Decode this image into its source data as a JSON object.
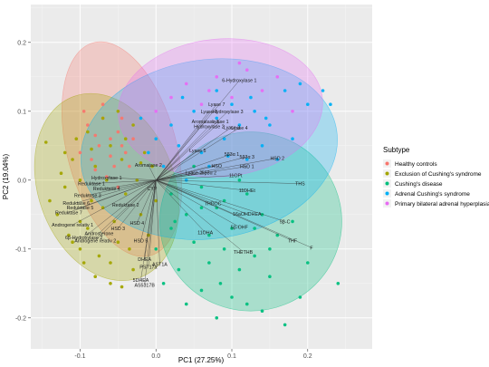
{
  "chart_data": {
    "type": "scatter",
    "subtype": "pca-biplot",
    "title": "",
    "xlabel": "PC1 (27.25%)",
    "ylabel": "PC2 (19.04%)",
    "xlim": [
      -0.165,
      0.285
    ],
    "ylim": [
      -0.245,
      0.255
    ],
    "x_ticks": [
      -0.1,
      0.0,
      0.1,
      0.2
    ],
    "x_tick_labels": [
      "-0.1",
      "0.0",
      "0.1",
      "0.2"
    ],
    "y_ticks": [
      -0.2,
      -0.1,
      0.0,
      0.1,
      0.2
    ],
    "y_tick_labels": [
      "-0.2",
      "-0.1",
      "0.0",
      "0.1",
      "0.2"
    ],
    "grid": true,
    "legend": {
      "title": "Subtype",
      "position": "right",
      "entries": [
        "Healthy controls",
        "Exclusion of Cushing's syndrome",
        "Cushing's disease",
        "Adrenal Cushing's syndrome",
        "Primary bilateral adrenal hyperplasia"
      ]
    },
    "series": [
      {
        "name": "Healthy controls",
        "color": "#f8766d",
        "ellipse": {
          "cx": -0.045,
          "cy": 0.045,
          "rx": 0.072,
          "ry": 0.16,
          "angle": -15
        },
        "points": [
          [
            -0.09,
            0.08
          ],
          [
            -0.08,
            0.065
          ],
          [
            -0.07,
            0.09
          ],
          [
            -0.075,
            0.05
          ],
          [
            -0.06,
            0.06
          ],
          [
            -0.085,
            0.03
          ],
          [
            -0.06,
            0.035
          ],
          [
            -0.05,
            0.07
          ],
          [
            -0.045,
            0.05
          ],
          [
            -0.055,
            0.02
          ],
          [
            -0.095,
            0.1
          ],
          [
            -0.07,
            0.11
          ],
          [
            -0.04,
            0.04
          ],
          [
            -0.065,
            0.005
          ],
          [
            -0.05,
            -0.01
          ],
          [
            -0.03,
            0.06
          ],
          [
            -0.08,
            0.015
          ],
          [
            -0.1,
            0.04
          ],
          [
            -0.045,
            0.09
          ],
          [
            -0.035,
            0.02
          ]
        ]
      },
      {
        "name": "Exclusion of Cushing's syndrome",
        "color": "#a3a500",
        "ellipse": {
          "cx": -0.065,
          "cy": -0.01,
          "rx": 0.09,
          "ry": 0.14,
          "angle": -20
        },
        "points": [
          [
            -0.14,
            -0.03
          ],
          [
            -0.13,
            -0.05
          ],
          [
            -0.12,
            0.04
          ],
          [
            -0.11,
            0.03
          ],
          [
            -0.12,
            -0.01
          ],
          [
            -0.1,
            -0.06
          ],
          [
            -0.11,
            -0.09
          ],
          [
            -0.09,
            0.07
          ],
          [
            -0.1,
            0.0
          ],
          [
            -0.08,
            0.02
          ],
          [
            -0.085,
            -0.03
          ],
          [
            -0.09,
            -0.07
          ],
          [
            -0.075,
            -0.11
          ],
          [
            -0.06,
            0.05
          ],
          [
            -0.07,
            -0.04
          ],
          [
            -0.065,
            0.0
          ],
          [
            -0.055,
            -0.06
          ],
          [
            -0.05,
            -0.09
          ],
          [
            -0.045,
            0.03
          ],
          [
            -0.04,
            -0.02
          ],
          [
            -0.035,
            -0.1
          ],
          [
            -0.03,
            -0.13
          ],
          [
            -0.025,
            0.0
          ],
          [
            -0.02,
            -0.05
          ],
          [
            -0.015,
            0.04
          ],
          [
            -0.01,
            -0.08
          ],
          [
            -0.005,
            0.02
          ],
          [
            0.0,
            -0.03
          ],
          [
            -0.105,
            0.06
          ],
          [
            -0.095,
            -0.12
          ],
          [
            -0.125,
            0.01
          ],
          [
            -0.08,
            -0.14
          ],
          [
            -0.06,
            -0.12
          ],
          [
            -0.07,
            0.09
          ],
          [
            -0.05,
            0.1
          ],
          [
            -0.03,
            0.08
          ],
          [
            -0.145,
            0.055
          ],
          [
            -0.115,
            -0.08
          ],
          [
            -0.1,
            -0.1
          ],
          [
            -0.085,
            0.045
          ],
          [
            -0.04,
            0.06
          ],
          [
            -0.02,
            0.025
          ],
          [
            -0.06,
            -0.15
          ],
          [
            -0.045,
            -0.155
          ]
        ]
      },
      {
        "name": "Cushing's disease",
        "color": "#00bf7d",
        "ellipse": {
          "cx": 0.125,
          "cy": -0.06,
          "rx": 0.12,
          "ry": 0.13,
          "angle": 0
        },
        "points": [
          [
            0.02,
            -0.02
          ],
          [
            0.04,
            -0.05
          ],
          [
            0.06,
            -0.01
          ],
          [
            0.08,
            -0.04
          ],
          [
            0.1,
            -0.07
          ],
          [
            0.12,
            -0.02
          ],
          [
            0.14,
            -0.05
          ],
          [
            0.16,
            -0.08
          ],
          [
            0.05,
            -0.09
          ],
          [
            0.07,
            -0.12
          ],
          [
            0.09,
            -0.1
          ],
          [
            0.11,
            -0.13
          ],
          [
            0.13,
            -0.11
          ],
          [
            0.15,
            -0.14
          ],
          [
            0.03,
            -0.13
          ],
          [
            0.06,
            -0.16
          ],
          [
            0.1,
            -0.17
          ],
          [
            0.12,
            -0.18
          ],
          [
            0.08,
            -0.2
          ],
          [
            0.14,
            -0.19
          ],
          [
            0.17,
            -0.21
          ],
          [
            0.24,
            -0.15
          ],
          [
            0.2,
            -0.12
          ],
          [
            0.18,
            -0.06
          ],
          [
            0.02,
            -0.07
          ],
          [
            0.0,
            -0.1
          ],
          [
            0.01,
            -0.15
          ],
          [
            0.04,
            -0.18
          ],
          [
            0.09,
            -0.03
          ],
          [
            0.11,
            0.0
          ],
          [
            0.05,
            0.02
          ],
          [
            0.13,
            -0.07
          ],
          [
            0.07,
            -0.08
          ],
          [
            0.15,
            -0.1
          ],
          [
            0.19,
            -0.17
          ],
          [
            0.06,
            -0.04
          ],
          [
            0.025,
            -0.06
          ],
          [
            0.085,
            -0.15
          ]
        ]
      },
      {
        "name": "Adrenal Cushing's syndrome",
        "color": "#00b0f6",
        "ellipse": {
          "cx": 0.07,
          "cy": 0.045,
          "rx": 0.17,
          "ry": 0.13,
          "angle": -8
        },
        "points": [
          [
            0.02,
            0.08
          ],
          [
            0.05,
            0.1
          ],
          [
            0.08,
            0.09
          ],
          [
            0.1,
            0.11
          ],
          [
            0.13,
            0.1
          ],
          [
            0.15,
            0.08
          ],
          [
            0.18,
            0.06
          ],
          [
            0.2,
            0.11
          ],
          [
            0.22,
            0.13
          ],
          [
            0.03,
            0.05
          ],
          [
            0.06,
            0.04
          ],
          [
            0.09,
            0.06
          ],
          [
            0.12,
            0.03
          ],
          [
            0.14,
            0.05
          ],
          [
            0.11,
            0.08
          ],
          [
            0.07,
            0.02
          ],
          [
            0.16,
            0.03
          ],
          [
            0.0,
            0.06
          ],
          [
            0.01,
            0.02
          ],
          [
            0.04,
            0.0
          ],
          [
            0.17,
            0.13
          ],
          [
            0.19,
            0.14
          ],
          [
            0.23,
            0.11
          ],
          [
            0.08,
            0.13
          ],
          [
            0.035,
            0.12
          ],
          [
            -0.02,
            0.09
          ],
          [
            -0.01,
            0.04
          ],
          [
            0.125,
            0.12
          ],
          [
            0.145,
            0.09
          ],
          [
            0.095,
            0.035
          ]
        ]
      },
      {
        "name": "Primary bilateral adrenal hyperplasia",
        "color": "#e76bf3",
        "ellipse": {
          "cx": 0.085,
          "cy": 0.105,
          "rx": 0.135,
          "ry": 0.1,
          "angle": -5
        },
        "points": [
          [
            0.04,
            0.14
          ],
          [
            0.08,
            0.15
          ],
          [
            0.12,
            0.16
          ],
          [
            0.16,
            0.15
          ],
          [
            0.1,
            0.12
          ],
          [
            0.06,
            0.11
          ],
          [
            0.14,
            0.13
          ],
          [
            0.02,
            0.12
          ],
          [
            0.18,
            0.1
          ],
          [
            0.0,
            0.1
          ],
          [
            0.11,
            0.17
          ],
          [
            0.07,
            0.13
          ]
        ]
      }
    ],
    "loadings": [
      {
        "label": "6-Hydroxylase 1",
        "x": 0.11,
        "y": 0.145
      },
      {
        "label": "Lyase 7",
        "x": 0.08,
        "y": 0.11
      },
      {
        "label": "Lyase 8",
        "x": 0.07,
        "y": 0.1
      },
      {
        "label": "Hydroxylase 3",
        "x": 0.095,
        "y": 0.1
      },
      {
        "label": "Aromatase 1",
        "x": 0.065,
        "y": 0.085
      },
      {
        "label": "Lyase 1",
        "x": 0.085,
        "y": 0.085
      },
      {
        "label": "Hydroxylase 2",
        "x": 0.07,
        "y": 0.078
      },
      {
        "label": "Lyase 3",
        "x": 0.1,
        "y": 0.077
      },
      {
        "label": "Lyase 4",
        "x": 0.11,
        "y": 0.076
      },
      {
        "label": "5β3α 3",
        "x": 0.12,
        "y": 0.034
      },
      {
        "label": "HSD 2",
        "x": 0.16,
        "y": 0.032
      },
      {
        "label": "5β3α 1",
        "x": 0.1,
        "y": 0.038
      },
      {
        "label": "Lyase 5",
        "x": 0.055,
        "y": 0.043
      },
      {
        "label": "HSO",
        "x": 0.08,
        "y": 0.021
      },
      {
        "label": "HSD 1",
        "x": 0.12,
        "y": 0.02
      },
      {
        "label": "Lyase 2",
        "x": 0.05,
        "y": 0.011
      },
      {
        "label": "5β3α 2",
        "x": 0.07,
        "y": 0.011
      },
      {
        "label": "11OPt",
        "x": 0.105,
        "y": 0.007
      },
      {
        "label": "Aromatase 2",
        "x": -0.01,
        "y": 0.022
      },
      {
        "label": "Hydroxylase 1",
        "x": -0.065,
        "y": 0.004
      },
      {
        "label": "Reduktase 1",
        "x": -0.085,
        "y": -0.005
      },
      {
        "label": "Reduktase 4",
        "x": -0.065,
        "y": -0.012
      },
      {
        "label": "Reduktase 3",
        "x": -0.09,
        "y": -0.022
      },
      {
        "label": "Reduktase 5",
        "x": -0.1,
        "y": -0.04
      },
      {
        "label": "Reduktase 2",
        "x": -0.04,
        "y": -0.036
      },
      {
        "label": "Reduktase 6",
        "x": -0.105,
        "y": -0.033
      },
      {
        "label": "Reduktase 7",
        "x": -0.115,
        "y": -0.047
      },
      {
        "label": "CYP",
        "x": -0.005,
        "y": -0.012
      },
      {
        "label": "THS",
        "x": 0.19,
        "y": -0.005
      },
      {
        "label": "11DHEt",
        "x": 0.12,
        "y": -0.015
      },
      {
        "label": "THDOC",
        "x": 0.075,
        "y": -0.034
      },
      {
        "label": "16aOHDHEA",
        "x": 0.12,
        "y": -0.049
      },
      {
        "label": "5β-C",
        "x": 0.17,
        "y": -0.06
      },
      {
        "label": "THF",
        "x": 0.18,
        "y": -0.088
      },
      {
        "label": "F",
        "x": 0.205,
        "y": -0.098
      },
      {
        "label": "THETHB",
        "x": 0.115,
        "y": -0.104
      },
      {
        "label": "5β-OHF",
        "x": 0.11,
        "y": -0.068
      },
      {
        "label": "11OHA",
        "x": 0.065,
        "y": -0.076
      },
      {
        "label": "DHEA",
        "x": -0.015,
        "y": -0.115
      },
      {
        "label": "AST1A",
        "x": 0.005,
        "y": -0.122
      },
      {
        "label": "PST17a",
        "x": -0.01,
        "y": -0.126
      },
      {
        "label": "Androgene relativ 1",
        "x": -0.11,
        "y": -0.065
      },
      {
        "label": "Androgene relativ 2",
        "x": -0.08,
        "y": -0.088
      },
      {
        "label": "6β-Hydroxylase 2",
        "x": -0.095,
        "y": -0.083
      },
      {
        "label": "Androsterone",
        "x": -0.075,
        "y": -0.077
      },
      {
        "label": "HSD 4",
        "x": -0.025,
        "y": -0.062
      },
      {
        "label": "HSD 5",
        "x": -0.02,
        "y": -0.088
      },
      {
        "label": "HSD 3",
        "x": -0.05,
        "y": -0.07
      },
      {
        "label": "AS5317B",
        "x": -0.015,
        "y": -0.152
      },
      {
        "label": "5DHEA",
        "x": -0.02,
        "y": -0.145
      }
    ]
  }
}
